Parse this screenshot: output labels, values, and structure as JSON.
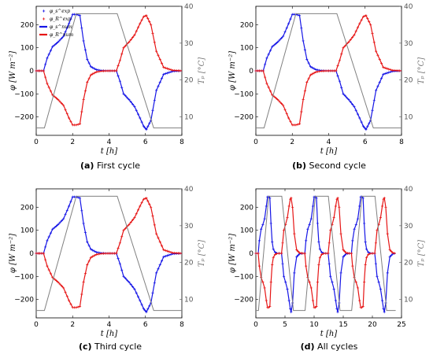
{
  "chart_data": [
    {
      "type": "line",
      "caption_letter": "(a)",
      "caption_text": " First cycle",
      "xlabel": "t [h]",
      "ylabel": "φ [W m⁻²]",
      "y2label": "Tₚ [°C]",
      "xlim": [
        0,
        8
      ],
      "ylim": [
        -280,
        280
      ],
      "y2lim": [
        5,
        40
      ],
      "xticks": [
        0,
        2,
        4,
        6,
        8
      ],
      "yticks": [
        -200,
        -100,
        0,
        100,
        200
      ],
      "y2ticks": [
        10,
        20,
        30,
        40
      ],
      "legend": [
        "φ_s^exp",
        "φ_R^exp",
        "φ_s^num",
        "φ_R^num"
      ],
      "series": [
        {
          "color": "#1515e6",
          "x": [
            0,
            0.4,
            0.6,
            0.9,
            1.2,
            1.5,
            1.8,
            2.0,
            2.2,
            2.4,
            2.6,
            2.8,
            3.0,
            3.3,
            3.6,
            4.0,
            4.4,
            4.6,
            4.8,
            5.1,
            5.4,
            5.7,
            5.9,
            6.05,
            6.3,
            6.6,
            7.0,
            7.5,
            8.0
          ],
          "values": [
            0,
            0,
            55,
            105,
            125,
            150,
            205,
            245,
            245,
            240,
            130,
            50,
            18,
            5,
            1,
            0,
            0,
            -45,
            -100,
            -125,
            -155,
            -205,
            -240,
            -255,
            -215,
            -85,
            -15,
            -2,
            0
          ]
        },
        {
          "color": "#e61515",
          "x": [
            0,
            0.4,
            0.6,
            0.9,
            1.2,
            1.5,
            1.8,
            2.0,
            2.2,
            2.4,
            2.6,
            2.8,
            3.0,
            3.3,
            3.6,
            4.0,
            4.4,
            4.6,
            4.8,
            5.1,
            5.4,
            5.7,
            5.9,
            6.05,
            6.3,
            6.6,
            7.0,
            7.5,
            8.0
          ],
          "values": [
            0,
            0,
            -55,
            -105,
            -125,
            -150,
            -205,
            -235,
            -235,
            -230,
            -125,
            -50,
            -18,
            -5,
            -1,
            0,
            0,
            45,
            100,
            125,
            155,
            205,
            235,
            240,
            200,
            85,
            15,
            2,
            0
          ]
        },
        {
          "color": "#808080",
          "axis": "right",
          "x": [
            0,
            0.45,
            2.2,
            4.45,
            6.45,
            8.0
          ],
          "values": [
            7,
            7,
            38,
            38,
            7,
            7
          ]
        }
      ]
    },
    {
      "type": "line",
      "caption_letter": "(b)",
      "caption_text": " Second cycle",
      "xlabel": "t [h]",
      "ylabel": "φ [W m⁻²]",
      "y2label": "Tₚ [°C]",
      "xlim": [
        0,
        8
      ],
      "ylim": [
        -280,
        280
      ],
      "y2lim": [
        5,
        40
      ],
      "xticks": [
        0,
        2,
        4,
        6,
        8
      ],
      "yticks": [
        -200,
        -100,
        0,
        100,
        200
      ],
      "y2ticks": [
        10,
        20,
        30,
        40
      ],
      "series": [
        {
          "color": "#1515e6",
          "x": [
            0,
            0.4,
            0.6,
            0.9,
            1.2,
            1.5,
            1.8,
            2.0,
            2.2,
            2.4,
            2.6,
            2.8,
            3.0,
            3.3,
            3.6,
            4.0,
            4.4,
            4.6,
            4.8,
            5.1,
            5.4,
            5.7,
            5.9,
            6.05,
            6.3,
            6.6,
            7.0,
            7.5,
            8.0
          ],
          "values": [
            0,
            0,
            55,
            105,
            125,
            150,
            205,
            245,
            245,
            240,
            130,
            50,
            18,
            5,
            1,
            0,
            0,
            -45,
            -100,
            -125,
            -155,
            -205,
            -240,
            -255,
            -215,
            -85,
            -15,
            -2,
            0
          ]
        },
        {
          "color": "#e61515",
          "x": [
            0,
            0.4,
            0.6,
            0.9,
            1.2,
            1.5,
            1.8,
            2.0,
            2.2,
            2.4,
            2.6,
            2.8,
            3.0,
            3.3,
            3.6,
            4.0,
            4.4,
            4.6,
            4.8,
            5.1,
            5.4,
            5.7,
            5.9,
            6.05,
            6.3,
            6.6,
            7.0,
            7.5,
            8.0
          ],
          "values": [
            0,
            0,
            -55,
            -105,
            -125,
            -150,
            -205,
            -235,
            -235,
            -230,
            -125,
            -50,
            -18,
            -5,
            -1,
            0,
            0,
            45,
            100,
            125,
            155,
            205,
            235,
            240,
            200,
            85,
            15,
            2,
            0
          ]
        },
        {
          "color": "#808080",
          "axis": "right",
          "x": [
            0,
            0.45,
            2.2,
            4.45,
            6.45,
            8.0
          ],
          "values": [
            7,
            7,
            38,
            38,
            7,
            7
          ]
        }
      ]
    },
    {
      "type": "line",
      "caption_letter": "(c)",
      "caption_text": " Third cycle",
      "xlabel": "t [h]",
      "ylabel": "φ [W m⁻²]",
      "y2label": "Tₚ [°C]",
      "xlim": [
        0,
        8
      ],
      "ylim": [
        -280,
        280
      ],
      "y2lim": [
        5,
        40
      ],
      "xticks": [
        0,
        2,
        4,
        6,
        8
      ],
      "yticks": [
        -200,
        -100,
        0,
        100,
        200
      ],
      "y2ticks": [
        10,
        20,
        30,
        40
      ],
      "series": [
        {
          "color": "#1515e6",
          "x": [
            0,
            0.4,
            0.6,
            0.9,
            1.2,
            1.5,
            1.8,
            2.0,
            2.2,
            2.4,
            2.6,
            2.8,
            3.0,
            3.3,
            3.6,
            4.0,
            4.4,
            4.6,
            4.8,
            5.1,
            5.4,
            5.7,
            5.9,
            6.05,
            6.3,
            6.6,
            7.0,
            7.5,
            8.0
          ],
          "values": [
            0,
            0,
            55,
            105,
            125,
            150,
            205,
            245,
            245,
            240,
            130,
            50,
            18,
            5,
            1,
            0,
            0,
            -45,
            -100,
            -125,
            -155,
            -205,
            -240,
            -255,
            -215,
            -85,
            -15,
            -2,
            0
          ]
        },
        {
          "color": "#e61515",
          "x": [
            0,
            0.4,
            0.6,
            0.9,
            1.2,
            1.5,
            1.8,
            2.0,
            2.2,
            2.4,
            2.6,
            2.8,
            3.0,
            3.3,
            3.6,
            4.0,
            4.4,
            4.6,
            4.8,
            5.1,
            5.4,
            5.7,
            5.9,
            6.05,
            6.3,
            6.6,
            7.0,
            7.5,
            8.0
          ],
          "values": [
            0,
            0,
            -55,
            -105,
            -125,
            -150,
            -205,
            -235,
            -235,
            -230,
            -125,
            -50,
            -18,
            -5,
            -1,
            0,
            0,
            45,
            100,
            125,
            155,
            205,
            235,
            240,
            200,
            85,
            15,
            2,
            0
          ]
        },
        {
          "color": "#808080",
          "axis": "right",
          "x": [
            0,
            0.45,
            2.2,
            4.45,
            6.45,
            8.0
          ],
          "values": [
            7,
            7,
            38,
            38,
            7,
            7
          ]
        }
      ]
    },
    {
      "type": "line",
      "caption_letter": "(d)",
      "caption_text": " All cycles",
      "xlabel": "t [h]",
      "ylabel": "φ [W m⁻²]",
      "y2label": "Tₚ [°C]",
      "xlim": [
        0,
        25
      ],
      "ylim": [
        -280,
        280
      ],
      "y2lim": [
        5,
        40
      ],
      "xticks": [
        0,
        5,
        10,
        15,
        20,
        25
      ],
      "yticks": [
        -200,
        -100,
        0,
        100,
        200
      ],
      "y2ticks": [
        10,
        20,
        30,
        40
      ],
      "series": [
        {
          "color": "#1515e6",
          "x": [
            0,
            0.4,
            0.6,
            0.9,
            1.2,
            1.5,
            1.8,
            2.0,
            2.2,
            2.4,
            2.6,
            2.8,
            3.0,
            3.3,
            3.6,
            4.0,
            4.4,
            4.6,
            4.8,
            5.1,
            5.4,
            5.7,
            5.9,
            6.05,
            6.3,
            6.6,
            7.0,
            7.5,
            8.0,
            8.4,
            8.6,
            8.9,
            9.2,
            9.5,
            9.8,
            10.0,
            10.2,
            10.4,
            10.6,
            10.8,
            11.0,
            11.3,
            11.6,
            12.0,
            12.4,
            12.6,
            12.8,
            13.1,
            13.4,
            13.7,
            13.9,
            14.05,
            14.3,
            14.6,
            15.0,
            15.5,
            16.0,
            16.4,
            16.6,
            16.9,
            17.2,
            17.5,
            17.8,
            18.0,
            18.2,
            18.4,
            18.6,
            18.8,
            19.0,
            19.3,
            19.6,
            20.0,
            20.4,
            20.6,
            20.8,
            21.1,
            21.4,
            21.7,
            21.9,
            22.05,
            22.3,
            22.6,
            23.0,
            23.5,
            24.0
          ],
          "values": [
            0,
            0,
            55,
            105,
            125,
            150,
            205,
            245,
            245,
            240,
            130,
            50,
            18,
            5,
            1,
            0,
            0,
            -45,
            -100,
            -125,
            -155,
            -205,
            -240,
            -255,
            -215,
            -85,
            -15,
            -2,
            0,
            0,
            55,
            105,
            125,
            150,
            205,
            245,
            245,
            240,
            130,
            50,
            18,
            5,
            1,
            0,
            0,
            -45,
            -100,
            -125,
            -155,
            -205,
            -240,
            -255,
            -215,
            -85,
            -15,
            -2,
            0,
            0,
            55,
            105,
            125,
            150,
            205,
            245,
            245,
            240,
            130,
            50,
            18,
            5,
            1,
            0,
            0,
            -45,
            -100,
            -125,
            -155,
            -205,
            -240,
            -255,
            -215,
            -85,
            -15,
            -2,
            0
          ]
        },
        {
          "color": "#e61515",
          "x": [
            0,
            0.4,
            0.6,
            0.9,
            1.2,
            1.5,
            1.8,
            2.0,
            2.2,
            2.4,
            2.6,
            2.8,
            3.0,
            3.3,
            3.6,
            4.0,
            4.4,
            4.6,
            4.8,
            5.1,
            5.4,
            5.7,
            5.9,
            6.05,
            6.3,
            6.6,
            7.0,
            7.5,
            8.0,
            8.4,
            8.6,
            8.9,
            9.2,
            9.5,
            9.8,
            10.0,
            10.2,
            10.4,
            10.6,
            10.8,
            11.0,
            11.3,
            11.6,
            12.0,
            12.4,
            12.6,
            12.8,
            13.1,
            13.4,
            13.7,
            13.9,
            14.05,
            14.3,
            14.6,
            15.0,
            15.5,
            16.0,
            16.4,
            16.6,
            16.9,
            17.2,
            17.5,
            17.8,
            18.0,
            18.2,
            18.4,
            18.6,
            18.8,
            19.0,
            19.3,
            19.6,
            20.0,
            20.4,
            20.6,
            20.8,
            21.1,
            21.4,
            21.7,
            21.9,
            22.05,
            22.3,
            22.6,
            23.0,
            23.5,
            24.0
          ],
          "values": [
            0,
            0,
            -55,
            -105,
            -125,
            -150,
            -205,
            -235,
            -235,
            -230,
            -125,
            -50,
            -18,
            -5,
            -1,
            0,
            0,
            45,
            100,
            125,
            155,
            205,
            235,
            240,
            200,
            85,
            15,
            2,
            0,
            0,
            -55,
            -105,
            -125,
            -150,
            -205,
            -235,
            -235,
            -230,
            -125,
            -50,
            -18,
            -5,
            -1,
            0,
            0,
            45,
            100,
            125,
            155,
            205,
            235,
            240,
            200,
            85,
            15,
            2,
            0,
            0,
            -55,
            -105,
            -125,
            -150,
            -205,
            -235,
            -235,
            -230,
            -125,
            -50,
            -18,
            -5,
            -1,
            0,
            0,
            45,
            100,
            125,
            155,
            205,
            235,
            240,
            200,
            85,
            15,
            2,
            0
          ]
        },
        {
          "color": "#808080",
          "axis": "right",
          "x": [
            0,
            0.45,
            2.2,
            4.45,
            6.45,
            8.45,
            10.2,
            12.45,
            14.45,
            16.45,
            18.2,
            20.45,
            22.45,
            24.0
          ],
          "values": [
            7,
            7,
            38,
            38,
            7,
            7,
            38,
            38,
            7,
            7,
            38,
            38,
            7,
            7
          ]
        }
      ]
    }
  ]
}
